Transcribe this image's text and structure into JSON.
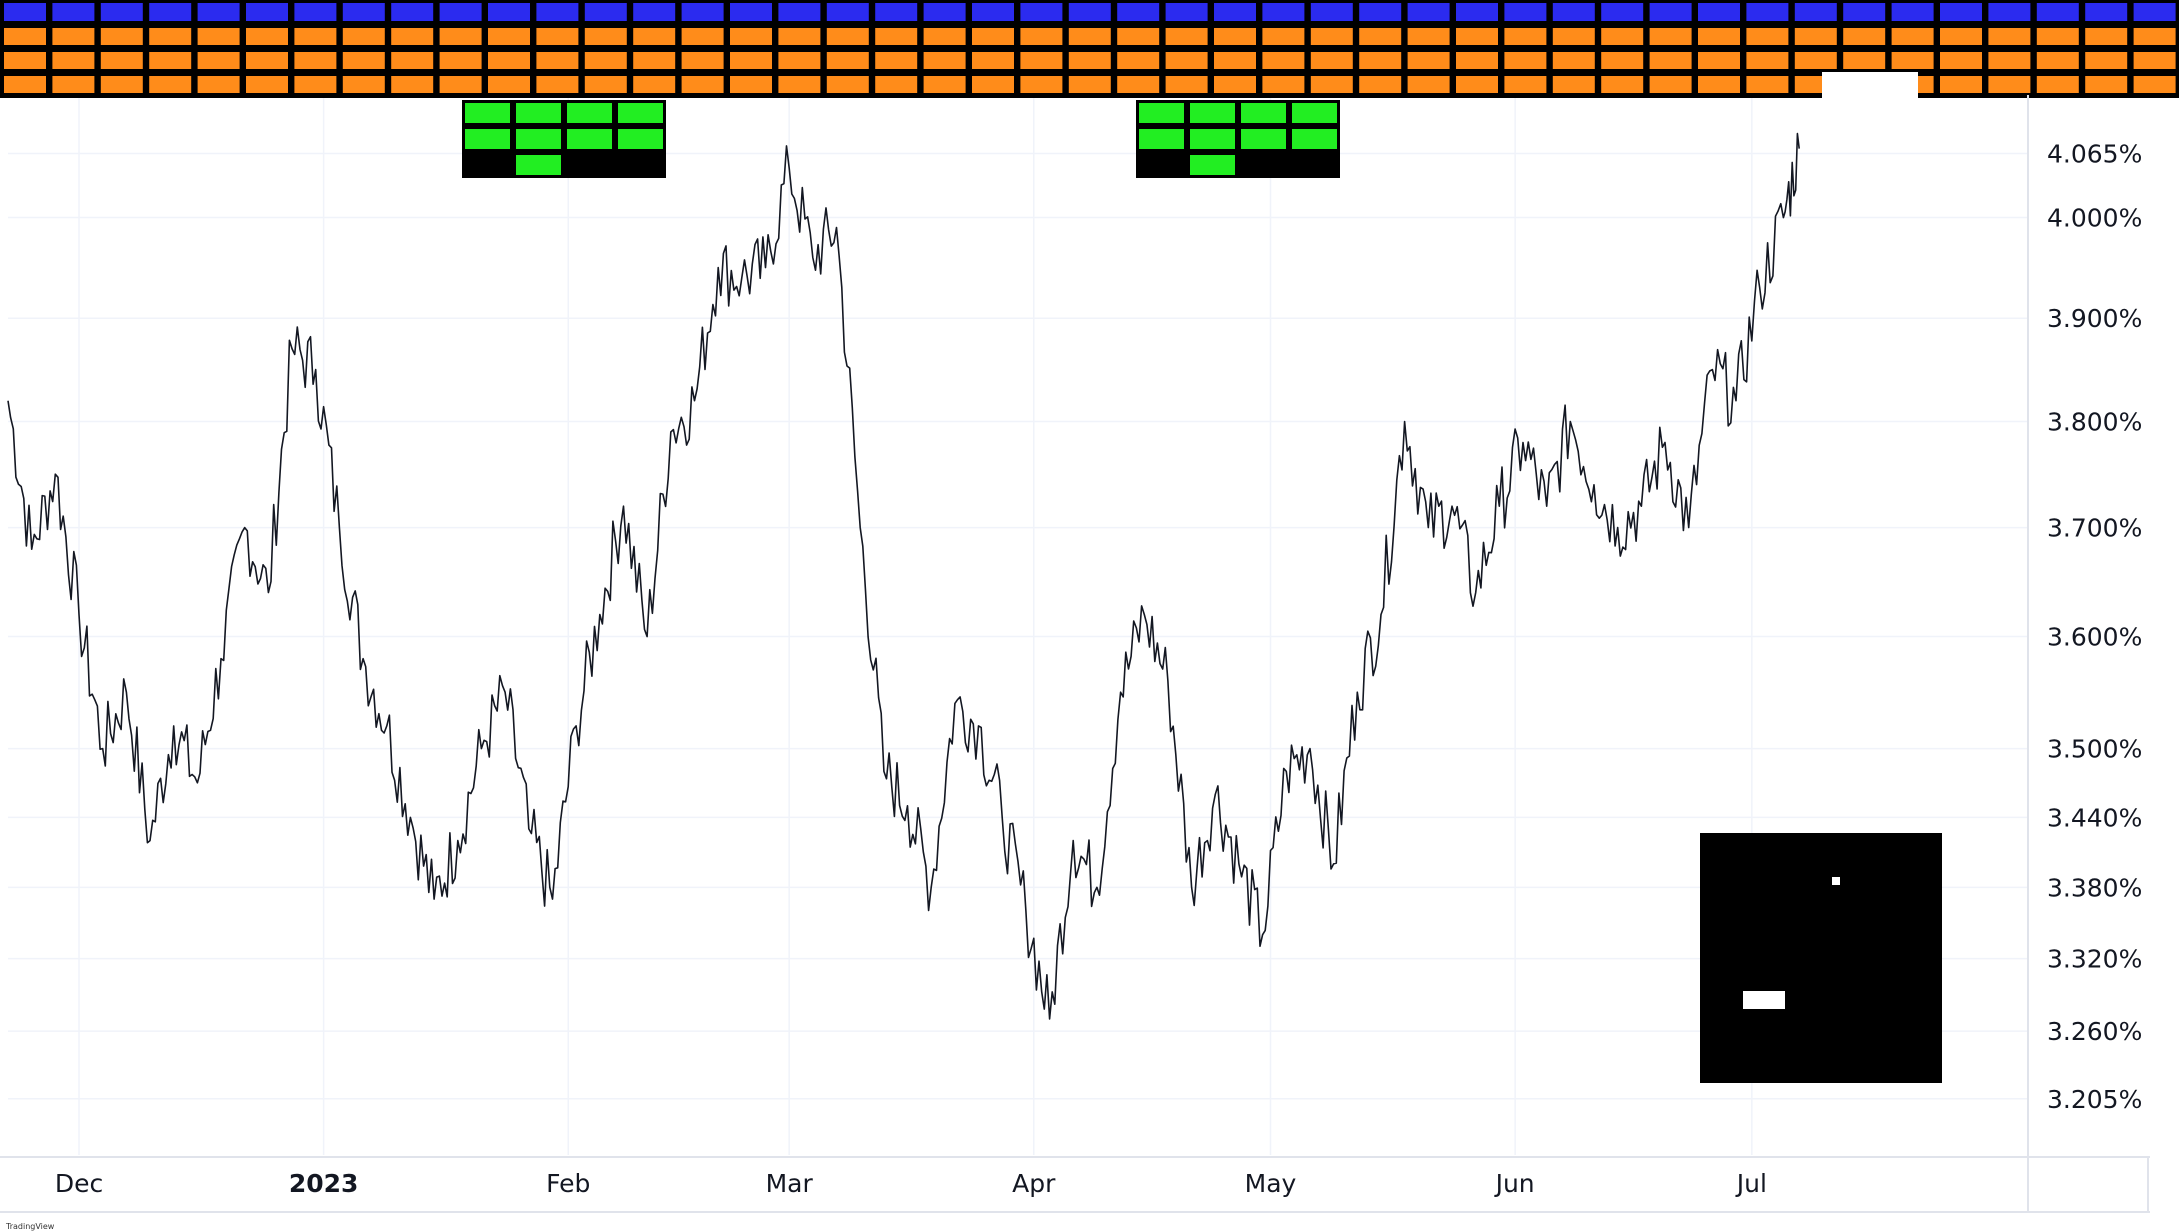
{
  "watermark": "TradingView",
  "colors": {
    "line": "#131722",
    "grid": "#f0f3fa",
    "axis_text": "#131722",
    "blue_block": "#2b2bef",
    "orange_block": "#ff8c1a",
    "green_block": "#22ee22",
    "black": "#000000",
    "white": "#ffffff"
  },
  "chart_data": {
    "type": "line",
    "title": "",
    "xlabel": "",
    "ylabel": "",
    "y_scale": "log",
    "ylim": [
      3.16,
      4.12
    ],
    "grid": true,
    "y_ticks": [
      {
        "value": 4.065,
        "label": "4.065%"
      },
      {
        "value": 4.0,
        "label": "4.000%"
      },
      {
        "value": 3.9,
        "label": "3.900%"
      },
      {
        "value": 3.8,
        "label": "3.800%"
      },
      {
        "value": 3.7,
        "label": "3.700%"
      },
      {
        "value": 3.6,
        "label": "3.600%"
      },
      {
        "value": 3.5,
        "label": "3.500%"
      },
      {
        "value": 3.44,
        "label": "3.440%"
      },
      {
        "value": 3.38,
        "label": "3.380%"
      },
      {
        "value": 3.32,
        "label": "3.320%"
      },
      {
        "value": 3.26,
        "label": "3.260%"
      },
      {
        "value": 3.205,
        "label": "3.205%"
      }
    ],
    "x_ticks": [
      {
        "date": "2022-12-01",
        "label": "Dec",
        "bold": false
      },
      {
        "date": "2023-01-01",
        "label": "2023",
        "bold": true
      },
      {
        "date": "2023-02-01",
        "label": "Feb",
        "bold": false
      },
      {
        "date": "2023-03-01",
        "label": "Mar",
        "bold": false
      },
      {
        "date": "2023-04-01",
        "label": "Apr",
        "bold": false
      },
      {
        "date": "2023-05-01",
        "label": "May",
        "bold": false
      },
      {
        "date": "2023-06-01",
        "label": "Jun",
        "bold": false
      },
      {
        "date": "2023-07-01",
        "label": "Jul",
        "bold": false
      }
    ],
    "xlim": [
      "2022-11-22",
      "2023-08-05"
    ],
    "series": [
      {
        "x": [
          "2022-11-22",
          "2022-11-25",
          "2022-11-28",
          "2022-12-01",
          "2022-12-04",
          "2022-12-07",
          "2022-12-10",
          "2022-12-13",
          "2022-12-16",
          "2022-12-19",
          "2022-12-22",
          "2022-12-25",
          "2022-12-28",
          "2022-12-31",
          "2023-01-03",
          "2023-01-06",
          "2023-01-09",
          "2023-01-12",
          "2023-01-15",
          "2023-01-18",
          "2023-01-21",
          "2023-01-24",
          "2023-01-27",
          "2023-01-30",
          "2023-02-02",
          "2023-02-05",
          "2023-02-08",
          "2023-02-11",
          "2023-02-14",
          "2023-02-17",
          "2023-02-20",
          "2023-02-23",
          "2023-02-26",
          "2023-03-01",
          "2023-03-04",
          "2023-03-07",
          "2023-03-10",
          "2023-03-13",
          "2023-03-16",
          "2023-03-19",
          "2023-03-22",
          "2023-03-25",
          "2023-03-28",
          "2023-03-31",
          "2023-04-03",
          "2023-04-06",
          "2023-04-09",
          "2023-04-12",
          "2023-04-15",
          "2023-04-18",
          "2023-04-21",
          "2023-04-24",
          "2023-04-27",
          "2023-04-30",
          "2023-05-03",
          "2023-05-06",
          "2023-05-09",
          "2023-05-12",
          "2023-05-15",
          "2023-05-18",
          "2023-05-21",
          "2023-05-24",
          "2023-05-27",
          "2023-05-30",
          "2023-06-02",
          "2023-06-05",
          "2023-06-08",
          "2023-06-11",
          "2023-06-14",
          "2023-06-17",
          "2023-06-20",
          "2023-06-23",
          "2023-06-26",
          "2023-06-29",
          "2023-07-02",
          "2023-07-05",
          "2023-07-07"
        ],
        "y": [
          3.82,
          3.68,
          3.75,
          3.62,
          3.5,
          3.55,
          3.42,
          3.52,
          3.47,
          3.58,
          3.7,
          3.64,
          3.87,
          3.85,
          3.7,
          3.58,
          3.52,
          3.44,
          3.37,
          3.42,
          3.5,
          3.55,
          3.43,
          3.37,
          3.52,
          3.62,
          3.72,
          3.6,
          3.79,
          3.82,
          3.95,
          3.94,
          3.95,
          4.05,
          3.96,
          3.99,
          3.7,
          3.48,
          3.45,
          3.38,
          3.54,
          3.52,
          3.44,
          3.36,
          3.27,
          3.42,
          3.38,
          3.55,
          3.62,
          3.56,
          3.38,
          3.46,
          3.4,
          3.34,
          3.48,
          3.5,
          3.4,
          3.55,
          3.62,
          3.8,
          3.7,
          3.72,
          3.64,
          3.72,
          3.78,
          3.72,
          3.8,
          3.74,
          3.7,
          3.72,
          3.78,
          3.7,
          3.85,
          3.82,
          3.93,
          4.0,
          4.07
        ]
      }
    ],
    "overlays": [
      {
        "type": "block-grid",
        "color": "blue_block",
        "count": 45
      },
      {
        "type": "block-grid",
        "color": "orange_block",
        "count": 135
      },
      {
        "type": "block-grid",
        "color": "green_block",
        "count": 9
      },
      {
        "type": "block-grid",
        "color": "green_block",
        "count": 9
      }
    ]
  }
}
